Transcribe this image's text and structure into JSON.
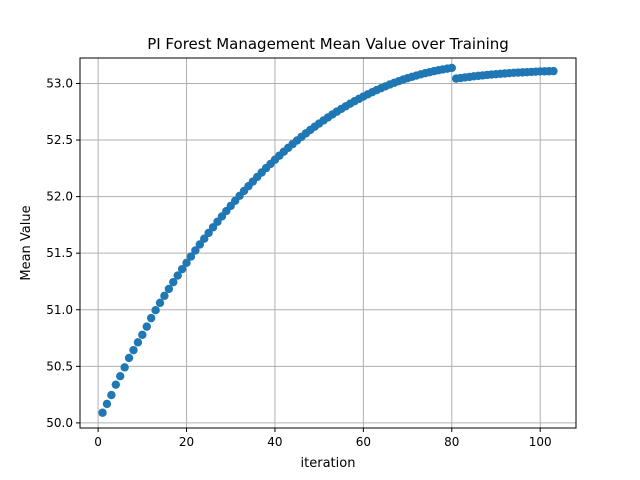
{
  "chart_data": {
    "type": "scatter",
    "title": "PI Forest Management Mean Value over Training",
    "xlabel": "iteration",
    "ylabel": "Mean Value",
    "xlim": [
      -4.1,
      108.1
    ],
    "ylim": [
      49.955,
      53.225
    ],
    "xticks": [
      0,
      20,
      40,
      60,
      80,
      100
    ],
    "yticks": [
      50.0,
      50.5,
      51.0,
      51.5,
      52.0,
      52.5,
      53.0
    ],
    "xtick_labels": [
      "0",
      "20",
      "40",
      "60",
      "80",
      "100"
    ],
    "ytick_labels": [
      "50.0",
      "50.5",
      "51.0",
      "51.5",
      "52.0",
      "52.5",
      "53.0"
    ],
    "grid": true,
    "marker_color": "#1f77b4",
    "x": [
      1,
      2,
      3,
      4,
      5,
      6,
      7,
      8,
      9,
      10,
      11,
      12,
      13,
      14,
      15,
      16,
      17,
      18,
      19,
      20,
      21,
      22,
      23,
      24,
      25,
      26,
      27,
      28,
      29,
      30,
      31,
      32,
      33,
      34,
      35,
      36,
      37,
      38,
      39,
      40,
      41,
      42,
      43,
      44,
      45,
      46,
      47,
      48,
      49,
      50,
      51,
      52,
      53,
      54,
      55,
      56,
      57,
      58,
      59,
      60,
      61,
      62,
      63,
      64,
      65,
      66,
      67,
      68,
      69,
      70,
      71,
      72,
      73,
      74,
      75,
      76,
      77,
      78,
      79,
      80,
      81,
      82,
      83,
      84,
      85,
      86,
      87,
      88,
      89,
      90,
      91,
      92,
      93,
      94,
      95,
      96,
      97,
      98,
      99,
      100,
      101,
      102,
      103
    ],
    "y": [
      50.09,
      50.168,
      50.246,
      50.338,
      50.413,
      50.491,
      50.574,
      50.643,
      50.712,
      50.779,
      50.851,
      50.926,
      50.996,
      51.061,
      51.123,
      51.184,
      51.244,
      51.302,
      51.359,
      51.415,
      51.47,
      51.524,
      51.577,
      51.628,
      51.679,
      51.729,
      51.778,
      51.825,
      51.872,
      51.918,
      51.963,
      52.007,
      52.05,
      52.092,
      52.133,
      52.174,
      52.213,
      52.252,
      52.289,
      52.326,
      52.362,
      52.397,
      52.431,
      52.464,
      52.496,
      52.528,
      52.559,
      52.589,
      52.618,
      52.646,
      52.673,
      52.7,
      52.726,
      52.751,
      52.775,
      52.798,
      52.821,
      52.843,
      52.864,
      52.884,
      52.904,
      52.923,
      52.941,
      52.958,
      52.975,
      52.991,
      53.006,
      53.02,
      53.034,
      53.047,
      53.059,
      53.07,
      53.081,
      53.091,
      53.1,
      53.109,
      53.117,
      53.124,
      53.131,
      53.137,
      53.043,
      53.048,
      53.053,
      53.058,
      53.063,
      53.067,
      53.071,
      53.075,
      53.079,
      53.082,
      53.085,
      53.088,
      53.091,
      53.094,
      53.096,
      53.098,
      53.1,
      53.102,
      53.104,
      53.106,
      53.107,
      53.108,
      53.109
    ]
  }
}
